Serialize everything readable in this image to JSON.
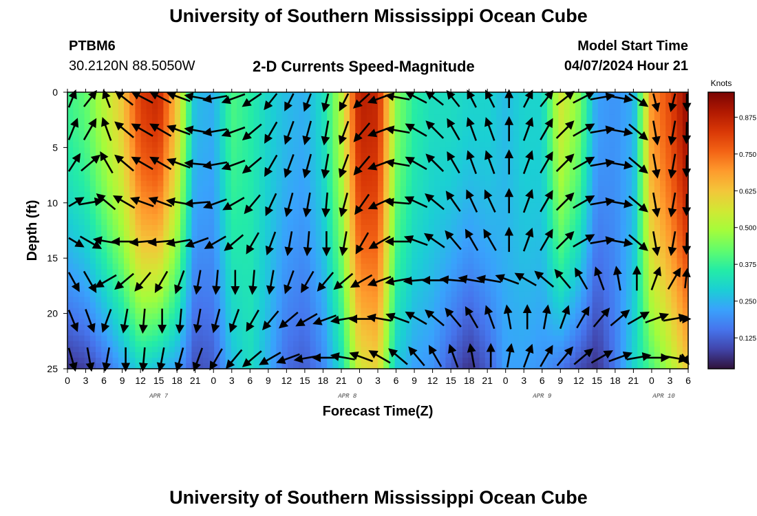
{
  "header": {
    "title": "University of Southern Mississippi Ocean Cube",
    "station_id": "PTBM6",
    "station_coords": "30.2120N  88.5050W",
    "plot_title": "2-D Currents Speed-Magnitude",
    "model_label": "Model Start Time",
    "model_time": "04/07/2024 Hour 21"
  },
  "footer": {
    "title": "University of Southern Mississippi Ocean Cube"
  },
  "chart_data": {
    "type": "heatmap",
    "title": "2-D Currents Speed-Magnitude",
    "xlabel": "Forecast Time(Z)",
    "ylabel": "Depth (ft)",
    "x_unit": "hours since 2024-04-07 00Z",
    "xlim": [
      0,
      102
    ],
    "ylim": [
      25,
      0
    ],
    "x_tick_values": [
      0,
      3,
      6,
      9,
      12,
      15,
      18,
      21,
      24,
      27,
      30,
      33,
      36,
      39,
      42,
      45,
      48,
      51,
      54,
      57,
      60,
      63,
      66,
      69,
      72,
      75,
      78,
      81,
      84,
      87,
      90,
      93,
      96,
      99,
      102
    ],
    "x_tick_labels": [
      "0",
      "3",
      "6",
      "9",
      "12",
      "15",
      "18",
      "21",
      "0",
      "3",
      "6",
      "9",
      "12",
      "15",
      "18",
      "21",
      "0",
      "3",
      "6",
      "9",
      "12",
      "15",
      "18",
      "21",
      "0",
      "3",
      "6",
      "9",
      "12",
      "15",
      "18",
      "21",
      "0",
      "3",
      "6"
    ],
    "y_tick_values": [
      0,
      5,
      10,
      15,
      20,
      25
    ],
    "y_tick_labels": [
      "0",
      "5",
      "10",
      "15",
      "20",
      "25"
    ],
    "date_labels": [
      {
        "text": "APR 7",
        "x": 15
      },
      {
        "text": "APR 8",
        "x": 46
      },
      {
        "text": "APR 9",
        "x": 78
      },
      {
        "text": "APR 10",
        "x": 98
      }
    ],
    "colorbar": {
      "unit": "Knots",
      "min": 0.02,
      "max": 0.96,
      "ticks": [
        "0.125",
        "0.250",
        "0.375",
        "0.500",
        "0.625",
        "0.750",
        "0.875"
      ],
      "tick_values": [
        0.125,
        0.25,
        0.375,
        0.5,
        0.625,
        0.75,
        0.875
      ],
      "colormap": [
        "#30123b",
        "#4145ab",
        "#4675ed",
        "#39a2fc",
        "#1bcfd4",
        "#24eca6",
        "#61fc6c",
        "#a4fc3b",
        "#d1e834",
        "#f3c63a",
        "#fe9b2d",
        "#f36315",
        "#d93806",
        "#b11901",
        "#7a0403"
      ]
    },
    "speed_profile": {
      "times": [
        0,
        3,
        6,
        9,
        12,
        15,
        18,
        21,
        24,
        27,
        30,
        33,
        36,
        39,
        42,
        45,
        48,
        51,
        54,
        57,
        60,
        63,
        66,
        69,
        72,
        75,
        78,
        81,
        84,
        87,
        90,
        93,
        96,
        99,
        102
      ],
      "surface": [
        0.38,
        0.42,
        0.52,
        0.62,
        0.82,
        0.86,
        0.62,
        0.26,
        0.24,
        0.4,
        0.36,
        0.3,
        0.26,
        0.24,
        0.32,
        0.52,
        0.88,
        0.86,
        0.46,
        0.36,
        0.32,
        0.32,
        0.3,
        0.3,
        0.26,
        0.3,
        0.3,
        0.56,
        0.46,
        0.22,
        0.2,
        0.24,
        0.7,
        0.8,
        0.94
      ],
      "bottom": [
        0.06,
        0.08,
        0.14,
        0.22,
        0.3,
        0.26,
        0.22,
        0.1,
        0.12,
        0.26,
        0.32,
        0.24,
        0.14,
        0.12,
        0.18,
        0.32,
        0.56,
        0.6,
        0.28,
        0.22,
        0.2,
        0.12,
        0.06,
        0.12,
        0.22,
        0.22,
        0.2,
        0.16,
        0.1,
        0.06,
        0.16,
        0.3,
        0.4,
        0.5,
        0.62
      ]
    },
    "vector_rows_depth_ft": [
      0.5,
      3.5,
      6.5,
      10,
      13.5,
      17,
      20.5,
      24
    ],
    "vector_directions_deg": [
      [
        20,
        30,
        -15,
        -45,
        -60,
        -60,
        -70,
        -80,
        -100,
        -110,
        -130,
        -150,
        -160,
        -165,
        -170,
        -160,
        -140,
        -110,
        -80,
        -60,
        -45,
        -30,
        -20,
        -20,
        0,
        20,
        30,
        45,
        60,
        80,
        100,
        130,
        170,
        190,
        200
      ],
      [
        30,
        30,
        -20,
        -50,
        -60,
        -60,
        -70,
        -80,
        -100,
        -110,
        -130,
        -150,
        -160,
        -165,
        -170,
        -160,
        -140,
        -110,
        -80,
        -60,
        -45,
        -30,
        -20,
        -20,
        0,
        20,
        30,
        45,
        60,
        80,
        100,
        130,
        170,
        190,
        210
      ],
      [
        45,
        50,
        -30,
        -50,
        -60,
        -60,
        -70,
        -85,
        -100,
        -110,
        -130,
        -150,
        -160,
        -165,
        -170,
        -160,
        -140,
        -110,
        -80,
        -60,
        -45,
        -30,
        -20,
        -20,
        0,
        20,
        30,
        45,
        60,
        80,
        100,
        130,
        170,
        190,
        210
      ],
      [
        70,
        80,
        -50,
        -60,
        -70,
        -70,
        -80,
        -95,
        -110,
        -120,
        -140,
        -155,
        -165,
        -170,
        -175,
        -165,
        -145,
        -115,
        -85,
        -65,
        -50,
        -35,
        -25,
        -25,
        0,
        20,
        30,
        45,
        60,
        80,
        100,
        130,
        170,
        190,
        210
      ],
      [
        110,
        120,
        -80,
        -90,
        -95,
        -95,
        -100,
        -110,
        -120,
        -130,
        -150,
        -160,
        -170,
        -175,
        -180,
        -170,
        -150,
        -120,
        -90,
        -70,
        -55,
        -40,
        -30,
        -30,
        0,
        20,
        30,
        45,
        60,
        80,
        100,
        130,
        170,
        190,
        210
      ],
      [
        140,
        150,
        -120,
        -130,
        -140,
        -150,
        -160,
        -170,
        -175,
        -180,
        -175,
        -170,
        -160,
        -150,
        -140,
        -130,
        -120,
        -110,
        -100,
        -95,
        -90,
        -85,
        -80,
        -80,
        -70,
        -60,
        -50,
        -40,
        -30,
        -20,
        -10,
        0,
        20,
        30,
        40
      ],
      [
        150,
        160,
        -160,
        -170,
        -175,
        -180,
        -175,
        -170,
        -165,
        -160,
        -150,
        -140,
        -130,
        -120,
        -110,
        -100,
        -90,
        -80,
        -70,
        -60,
        -50,
        -40,
        -30,
        -20,
        -10,
        0,
        10,
        20,
        30,
        40,
        50,
        60,
        70,
        80,
        90
      ],
      [
        160,
        170,
        -170,
        -180,
        -175,
        -170,
        -165,
        -160,
        -150,
        -140,
        -130,
        -120,
        -110,
        -100,
        -90,
        -80,
        -70,
        -60,
        -50,
        -40,
        -30,
        -20,
        -10,
        0,
        10,
        20,
        30,
        40,
        50,
        60,
        70,
        80,
        90,
        100,
        110
      ]
    ]
  }
}
